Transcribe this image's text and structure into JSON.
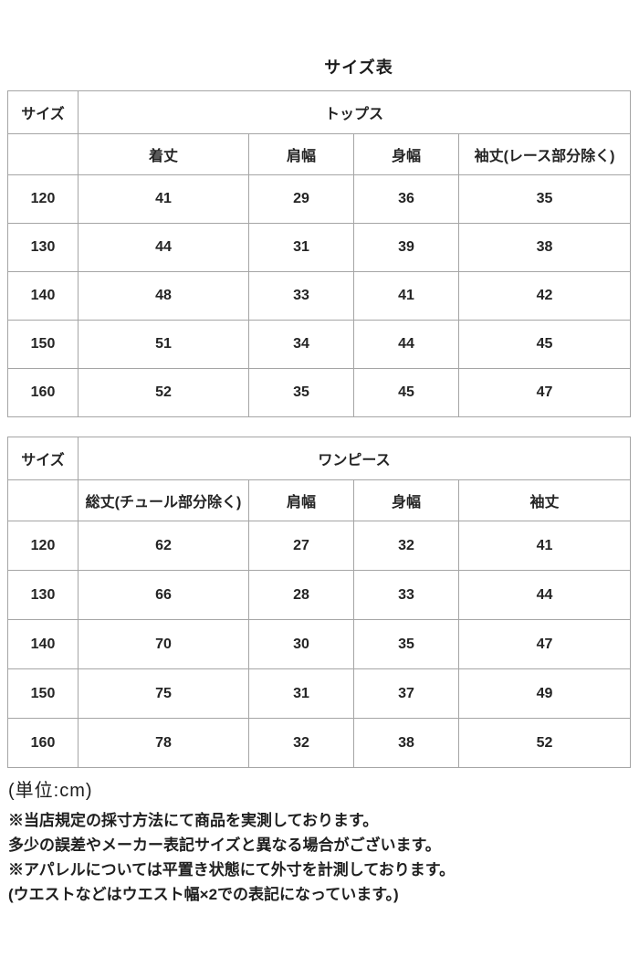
{
  "page": {
    "title": "サイズ表",
    "unit_label": "(単位:cm)",
    "notes": [
      "※当店規定の採寸方法にて商品を実測しております。",
      "多少の誤差やメーカー表記サイズと異なる場合がございます。",
      "※アパレルについては平置き状態にて外寸を計測しております。",
      "(ウエストなどはウエスト幅×2での表記になっています。)"
    ]
  },
  "colors": {
    "border": "#a5a5a5",
    "text": "#222222",
    "background": "#ffffff"
  },
  "tables": [
    {
      "size_label": "サイズ",
      "category": "トップス",
      "columns": [
        "着丈",
        "肩幅",
        "身幅",
        "袖丈(レース部分除く)"
      ],
      "rows": [
        {
          "size": "120",
          "values": [
            "41",
            "29",
            "36",
            "35"
          ]
        },
        {
          "size": "130",
          "values": [
            "44",
            "31",
            "39",
            "38"
          ]
        },
        {
          "size": "140",
          "values": [
            "48",
            "33",
            "41",
            "42"
          ]
        },
        {
          "size": "150",
          "values": [
            "51",
            "34",
            "44",
            "45"
          ]
        },
        {
          "size": "160",
          "values": [
            "52",
            "35",
            "45",
            "47"
          ]
        }
      ]
    },
    {
      "size_label": "サイズ",
      "category": "ワンピース",
      "columns": [
        "総丈(チュール部分除く)",
        "肩幅",
        "身幅",
        "袖丈"
      ],
      "rows": [
        {
          "size": "120",
          "values": [
            "62",
            "27",
            "32",
            "41"
          ]
        },
        {
          "size": "130",
          "values": [
            "66",
            "28",
            "33",
            "44"
          ]
        },
        {
          "size": "140",
          "values": [
            "70",
            "30",
            "35",
            "47"
          ]
        },
        {
          "size": "150",
          "values": [
            "75",
            "31",
            "37",
            "49"
          ]
        },
        {
          "size": "160",
          "values": [
            "78",
            "32",
            "38",
            "52"
          ]
        }
      ]
    }
  ]
}
